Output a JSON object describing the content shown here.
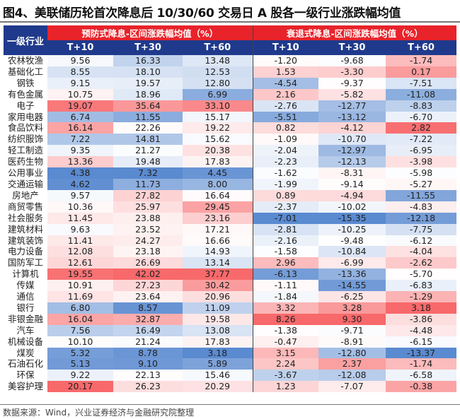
{
  "title": "图4、美联储历轮首次降息后 10/30/60 交易日 A 股各一级行业涨跌幅均值",
  "source": "数据来源：Wind，兴业证券经济与金融研究院整理",
  "chart_data": {
    "type": "heatmap",
    "row_header": "一级行业",
    "groups": [
      "预防式降息-区间涨跌幅均值（%）",
      "衰退式降息-区间涨跌幅均值（%）"
    ],
    "columns": [
      "T+10",
      "T+30",
      "T+60",
      "T+10",
      "T+30",
      "T+60"
    ],
    "color_scale": {
      "high": "#f8696b",
      "mid": "#ffffff",
      "low": "#5a8ad0"
    },
    "rows": [
      {
        "industry": "农林牧渔",
        "values": [
          "9.56",
          "16.33",
          "13.48",
          "-1.20",
          "-9.68",
          "-1.74"
        ]
      },
      {
        "industry": "基础化工",
        "values": [
          "8.55",
          "18.10",
          "12.53",
          "1.53",
          "-3.30",
          "0.17"
        ]
      },
      {
        "industry": "钢铁",
        "values": [
          "9.15",
          "19.57",
          "12.80",
          "-4.54",
          "-9.37",
          "-7.51"
        ]
      },
      {
        "industry": "有色金属",
        "values": [
          "10.75",
          "18.96",
          "6.99",
          "2.16",
          "-5.82",
          "-11.08"
        ]
      },
      {
        "industry": "电子",
        "values": [
          "19.07",
          "35.64",
          "33.10",
          "-2.76",
          "-12.77",
          "-8.83"
        ]
      },
      {
        "industry": "家用电器",
        "values": [
          "6.74",
          "11.55",
          "15.17",
          "-5.51",
          "-13.12",
          "-6.70"
        ]
      },
      {
        "industry": "食品饮料",
        "values": [
          "16.14",
          "22.26",
          "19.22",
          "0.82",
          "-4.12",
          "2.82"
        ]
      },
      {
        "industry": "纺织服饰",
        "values": [
          "7.22",
          "14.81",
          "15.62",
          "-1.09",
          "-10.70",
          "-7.22"
        ]
      },
      {
        "industry": "轻工制造",
        "values": [
          "9.35",
          "21.27",
          "20.38",
          "-2.04",
          "-12.97",
          "-6.95"
        ]
      },
      {
        "industry": "医药生物",
        "values": [
          "13.36",
          "19.48",
          "17.83",
          "-2.23",
          "-12.13",
          "-3.98"
        ]
      },
      {
        "industry": "公用事业",
        "values": [
          "4.38",
          "7.32",
          "4.45",
          "-1.62",
          "-8.31",
          "-5.98"
        ]
      },
      {
        "industry": "交通运输",
        "values": [
          "4.62",
          "11.73",
          "8.00",
          "-1.99",
          "-9.14",
          "-5.27"
        ]
      },
      {
        "industry": "房地产",
        "values": [
          "9.57",
          "27.82",
          "16.64",
          "0.89",
          "-4.94",
          "-11.55"
        ]
      },
      {
        "industry": "商贸零售",
        "values": [
          "10.36",
          "25.97",
          "29.45",
          "-2.37",
          "-10.02",
          "-4.83"
        ]
      },
      {
        "industry": "社会服务",
        "values": [
          "11.45",
          "23.88",
          "23.16",
          "-7.01",
          "-15.35",
          "-12.18"
        ]
      },
      {
        "industry": "建筑材料",
        "values": [
          "9.63",
          "23.52",
          "17.21",
          "-2.81",
          "-10.25",
          "-7.75"
        ]
      },
      {
        "industry": "建筑装饰",
        "values": [
          "11.41",
          "24.27",
          "16.66",
          "-2.16",
          "-9.48",
          "-6.12"
        ]
      },
      {
        "industry": "电力设备",
        "values": [
          "12.08",
          "23.18",
          "14.93",
          "-1.58",
          "-10.84",
          "-4.04"
        ]
      },
      {
        "industry": "国防军工",
        "values": [
          "12.61",
          "26.69",
          "13.14",
          "2.96",
          "-6.99",
          "-2.62"
        ]
      },
      {
        "industry": "计算机",
        "values": [
          "19.55",
          "42.02",
          "37.77",
          "-6.13",
          "-13.36",
          "-5.70"
        ]
      },
      {
        "industry": "传媒",
        "values": [
          "10.91",
          "27.23",
          "30.42",
          "-1.11",
          "-14.55",
          "-6.83"
        ]
      },
      {
        "industry": "通信",
        "values": [
          "11.69",
          "23.64",
          "20.96",
          "-1.84",
          "-6.25",
          "-1.29"
        ]
      },
      {
        "industry": "银行",
        "values": [
          "6.80",
          "8.57",
          "11.09",
          "3.32",
          "3.28",
          "3.18"
        ]
      },
      {
        "industry": "非银金融",
        "values": [
          "16.04",
          "32.87",
          "19.58",
          "8.26",
          "9.30",
          "-3.86"
        ]
      },
      {
        "industry": "汽车",
        "values": [
          "7.56",
          "16.49",
          "13.08",
          "-1.38",
          "-9.71",
          "-4.48"
        ]
      },
      {
        "industry": "机械设备",
        "values": [
          "10.10",
          "21.24",
          "17.83",
          "-0.47",
          "-8.91",
          "-6.15"
        ]
      },
      {
        "industry": "煤炭",
        "values": [
          "5.32",
          "8.78",
          "3.18",
          "3.15",
          "-12.80",
          "-13.37"
        ]
      },
      {
        "industry": "石油石化",
        "values": [
          "5.13",
          "9.10",
          "5.89",
          "2.24",
          "2.37",
          "-1.74"
        ]
      },
      {
        "industry": "环保",
        "values": [
          "9.22",
          "22.13",
          "15.46",
          "-3.67",
          "-12.08",
          "-6.58"
        ]
      },
      {
        "industry": "美容护理",
        "values": [
          "20.17",
          "26.23",
          "20.29",
          "1.23",
          "-7.07",
          "-0.38"
        ]
      }
    ]
  }
}
